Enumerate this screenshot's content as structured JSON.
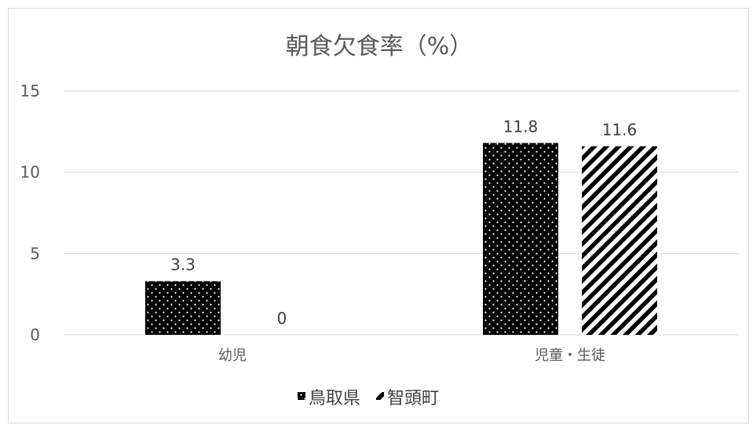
{
  "chart_data": {
    "type": "bar",
    "title": "朝食欠食率（%）",
    "categories": [
      "幼児",
      "児童・生徒"
    ],
    "series": [
      {
        "name": "鳥取県",
        "values": [
          3.3,
          11.8
        ],
        "pattern": "dots"
      },
      {
        "name": "智頭町",
        "values": [
          0,
          11.6
        ],
        "pattern": "diagonal-stripes"
      }
    ],
    "data_labels": [
      [
        "3.3",
        "11.8"
      ],
      [
        "0",
        "11.6"
      ]
    ],
    "ylim": [
      0,
      15
    ],
    "yticks": [
      0,
      5,
      10,
      15
    ],
    "grid": true,
    "legend_position": "bottom",
    "colors": {
      "bar_fill": "#000000",
      "pattern_fg": "#ffffff",
      "grid": "#d9d9d9",
      "text": "#595959"
    }
  }
}
